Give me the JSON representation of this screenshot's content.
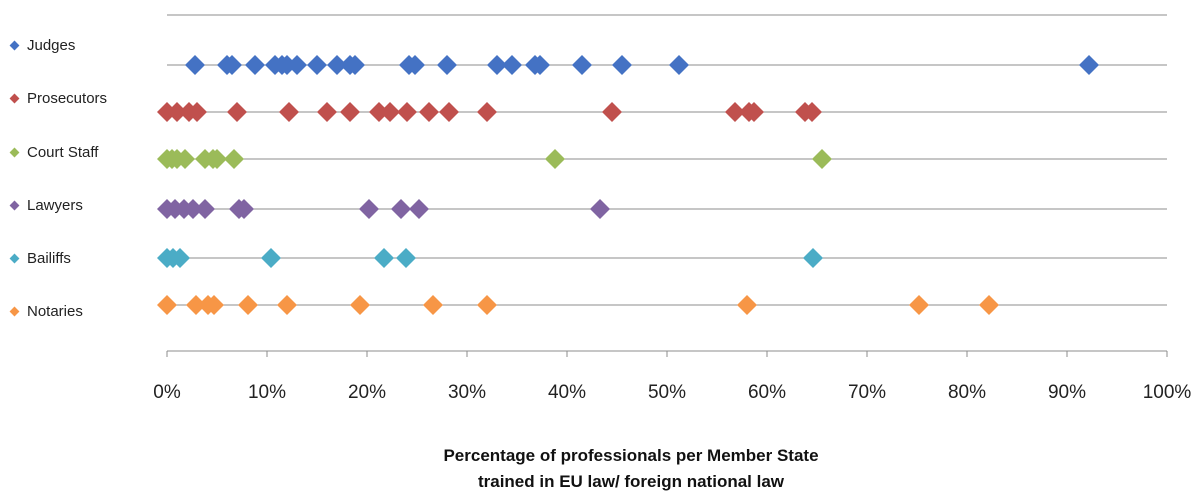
{
  "chart_data": {
    "type": "scatter",
    "xlabel_lines": [
      "Percentage of professionals per Member State",
      "trained in EU law/ foreign national law"
    ],
    "xlim": [
      0,
      100
    ],
    "x_ticks": [
      "0%",
      "10%",
      "20%",
      "30%",
      "40%",
      "50%",
      "60%",
      "70%",
      "80%",
      "90%",
      "100%"
    ],
    "grid": "horizontal lines per category",
    "legend_placement": "left",
    "series": [
      {
        "name": "Judges",
        "color": "#4472C4",
        "values": [
          2.8,
          6.0,
          6.5,
          8.8,
          10.8,
          11.5,
          12.0,
          13.0,
          15.0,
          17.0,
          18.3,
          18.8,
          24.2,
          24.8,
          28.0,
          33.0,
          34.5,
          36.8,
          37.3,
          41.5,
          45.5,
          51.2,
          92.2
        ]
      },
      {
        "name": "Prosecutors",
        "color": "#C0504D",
        "values": [
          0.0,
          1.0,
          2.2,
          3.0,
          7.0,
          12.2,
          16.0,
          18.3,
          21.2,
          22.3,
          24.0,
          26.2,
          28.2,
          32.0,
          44.5,
          56.8,
          58.2,
          58.7,
          63.8,
          64.5
        ]
      },
      {
        "name": "Court Staff",
        "color": "#9BBB59",
        "values": [
          0.0,
          0.5,
          1.0,
          1.8,
          3.8,
          4.6,
          5.0,
          6.7,
          38.8,
          65.5
        ]
      },
      {
        "name": "Lawyers",
        "color": "#8064A2",
        "values": [
          0.0,
          0.8,
          1.7,
          2.6,
          3.8,
          7.2,
          7.7,
          20.2,
          23.4,
          25.2,
          43.3
        ]
      },
      {
        "name": "Bailiffs",
        "color": "#4BACC6",
        "values": [
          0.0,
          0.6,
          1.3,
          10.4,
          21.7,
          23.9,
          64.6
        ]
      },
      {
        "name": "Notaries",
        "color": "#F79646",
        "values": [
          0.0,
          2.9,
          4.1,
          4.7,
          8.1,
          12.0,
          19.3,
          26.6,
          32.0,
          58.0,
          75.2,
          82.2
        ]
      }
    ]
  }
}
